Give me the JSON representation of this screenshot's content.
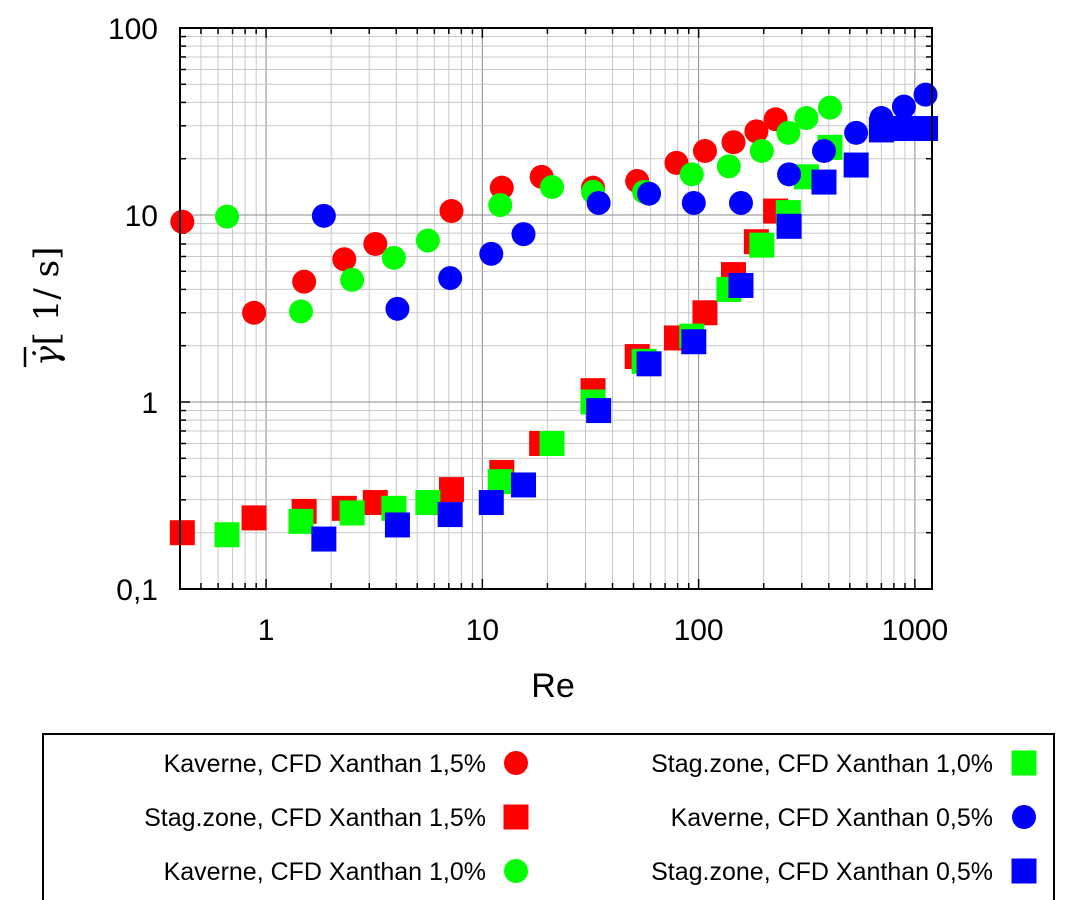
{
  "chart_data": {
    "type": "scatter",
    "xlabel": "Re",
    "ylabel_symbol": "γ̇",
    "ylabel_unit": "[ 1/ s]",
    "xscale": "log",
    "yscale": "log",
    "xlim": [
      0.4,
      1200
    ],
    "ylim": [
      0.1,
      100
    ],
    "x_ticks": [
      {
        "v": 1,
        "label": "1"
      },
      {
        "v": 10,
        "label": "10"
      },
      {
        "v": 100,
        "label": "100"
      },
      {
        "v": 1000,
        "label": "1000"
      }
    ],
    "y_ticks": [
      {
        "v": 0.1,
        "label": "0,1"
      },
      {
        "v": 1,
        "label": "1"
      },
      {
        "v": 10,
        "label": "10"
      },
      {
        "v": 100,
        "label": "100"
      }
    ],
    "grid": true,
    "legend_position": "bottom",
    "series": [
      {
        "name": "Kaverne, CFD Xanthan 1,5%",
        "marker": "circle",
        "color": "#ff0000",
        "points": [
          [
            0.41,
            9.2
          ],
          [
            0.88,
            3.0
          ],
          [
            1.5,
            4.4
          ],
          [
            2.3,
            5.8
          ],
          [
            3.2,
            7.0
          ],
          [
            7.2,
            10.5
          ],
          [
            12.3,
            14.0
          ],
          [
            18.8,
            16.0
          ],
          [
            32.5,
            14.0
          ],
          [
            52,
            15.2
          ],
          [
            79,
            19.0
          ],
          [
            107,
            22.0
          ],
          [
            145,
            24.5
          ],
          [
            185,
            28.0
          ],
          [
            227,
            32.5
          ]
        ]
      },
      {
        "name": "Stag.zone, CFD Xanthan 1,5%",
        "marker": "square",
        "color": "#ff0000",
        "points": [
          [
            0.41,
            0.2
          ],
          [
            0.88,
            0.24
          ],
          [
            1.5,
            0.26
          ],
          [
            2.3,
            0.27
          ],
          [
            3.2,
            0.29
          ],
          [
            7.2,
            0.34
          ],
          [
            12.3,
            0.42
          ],
          [
            18.8,
            0.6
          ],
          [
            32.5,
            1.15
          ],
          [
            52,
            1.75
          ],
          [
            79,
            2.2
          ],
          [
            107,
            3.0
          ],
          [
            145,
            4.8
          ],
          [
            185,
            7.2
          ],
          [
            227,
            10.5
          ]
        ]
      },
      {
        "name": "Kaverne, CFD Xanthan 1,0%",
        "marker": "circle",
        "color": "#00ff00",
        "points": [
          [
            0.66,
            9.8
          ],
          [
            1.45,
            3.05
          ],
          [
            2.5,
            4.5
          ],
          [
            3.9,
            5.9
          ],
          [
            5.6,
            7.3
          ],
          [
            12.1,
            11.3
          ],
          [
            21,
            14.1
          ],
          [
            32.5,
            13.3
          ],
          [
            56,
            13.3
          ],
          [
            93,
            16.5
          ],
          [
            138,
            18.2
          ],
          [
            196,
            22.0
          ],
          [
            260,
            27.5
          ],
          [
            315,
            33.0
          ],
          [
            405,
            37.5
          ]
        ]
      },
      {
        "name": "Stag.zone, CFD Xanthan 1,0%",
        "marker": "square",
        "color": "#00ff00",
        "points": [
          [
            0.66,
            0.195
          ],
          [
            1.45,
            0.23
          ],
          [
            2.5,
            0.255
          ],
          [
            3.9,
            0.27
          ],
          [
            5.6,
            0.29
          ],
          [
            12.1,
            0.375
          ],
          [
            21,
            0.6
          ],
          [
            32.5,
            1.0
          ],
          [
            56,
            1.65
          ],
          [
            93,
            2.25
          ],
          [
            138,
            4.0
          ],
          [
            196,
            6.9
          ],
          [
            260,
            10.3
          ],
          [
            315,
            16.0
          ],
          [
            405,
            23.0
          ]
        ]
      },
      {
        "name": "Kaverne, CFD Xanthan 0,5%",
        "marker": "circle",
        "color": "#0000ff",
        "points": [
          [
            1.85,
            9.9
          ],
          [
            4.05,
            3.15
          ],
          [
            7.1,
            4.6
          ],
          [
            11,
            6.2
          ],
          [
            15.5,
            7.9
          ],
          [
            34.5,
            11.6
          ],
          [
            59,
            13.0
          ],
          [
            95,
            11.6
          ],
          [
            157,
            11.6
          ],
          [
            262,
            16.5
          ],
          [
            380,
            22.0
          ],
          [
            535,
            27.5
          ],
          [
            700,
            33.0
          ],
          [
            890,
            38.0
          ],
          [
            1120,
            44.0
          ]
        ]
      },
      {
        "name": "Stag.zone, CFD Xanthan 0,5%",
        "marker": "square",
        "color": "#0000ff",
        "points": [
          [
            1.85,
            0.185
          ],
          [
            4.05,
            0.22
          ],
          [
            7.1,
            0.25
          ],
          [
            11,
            0.29
          ],
          [
            15.5,
            0.36
          ],
          [
            34.5,
            0.9
          ],
          [
            59,
            1.6
          ],
          [
            95,
            2.1
          ],
          [
            157,
            4.2
          ],
          [
            262,
            8.7
          ],
          [
            380,
            15.0
          ],
          [
            535,
            18.5
          ],
          [
            700,
            28.5
          ],
          [
            890,
            29.0
          ],
          [
            1120,
            29.0
          ]
        ]
      }
    ]
  }
}
